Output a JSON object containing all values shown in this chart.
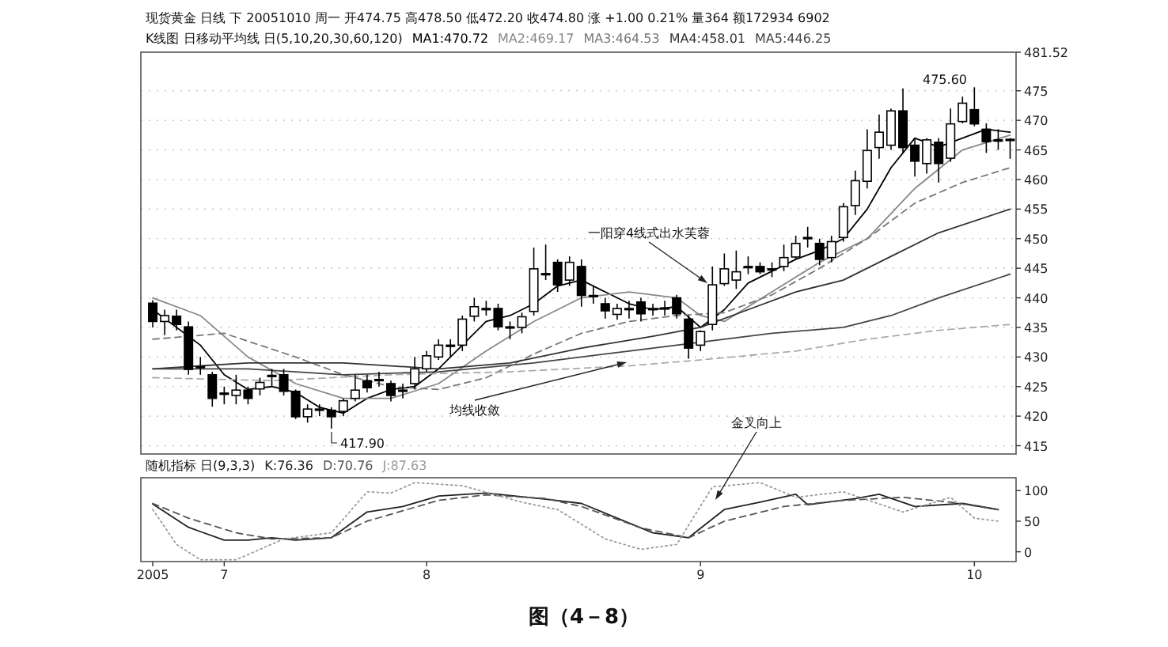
{
  "chart_data": [
    {
      "type": "candlestick",
      "title": "现货黄金 日线 下 20051010 周一 开474.75 高478.50 低472.20 收474.80 涨 +1.00 0.21% 量364 额172934 6902",
      "subtitle": "K线图 日移动平均线 日(5,10,20,30,60,120)",
      "categories": [
        null,
        null,
        null,
        null,
        null,
        null,
        null,
        null,
        null,
        null,
        null,
        null,
        null,
        null,
        null,
        null,
        null,
        null,
        null,
        null,
        null,
        null,
        null,
        null,
        null,
        null,
        null,
        null,
        null,
        null,
        null,
        null,
        null,
        null,
        null,
        null,
        null,
        null,
        null,
        null,
        null,
        null,
        null,
        null,
        null,
        null,
        null,
        null,
        null,
        null,
        null,
        null,
        null,
        null,
        null,
        null,
        null,
        null,
        null,
        null,
        null,
        null,
        null,
        null,
        null,
        null,
        null,
        null,
        null,
        null,
        null,
        null,
        null
      ],
      "ohlc": [
        [
          439.1,
          439.6,
          435,
          436
        ],
        [
          436,
          438,
          433.7,
          437
        ],
        [
          436.9,
          438,
          434.5,
          435.5
        ],
        [
          435.1,
          436,
          427,
          427.9
        ],
        [
          428.2,
          430,
          427,
          428.4
        ],
        [
          427,
          427.5,
          421.6,
          423
        ],
        [
          423.8,
          425,
          422,
          423.9
        ],
        [
          423.5,
          427,
          422,
          424.4
        ],
        [
          424.4,
          425,
          422,
          423
        ],
        [
          424.6,
          426.5,
          423.5,
          425.7
        ],
        [
          426.8,
          428,
          425,
          426.9
        ],
        [
          427,
          428,
          423.5,
          424.2
        ],
        [
          424.2,
          424.5,
          419.5,
          419.9
        ],
        [
          419.9,
          422,
          418.9,
          421.2
        ],
        [
          421.1,
          422,
          420,
          421.2
        ],
        [
          421,
          421.5,
          417.9,
          419.9
        ],
        [
          420.8,
          423,
          420,
          422.6
        ],
        [
          423,
          427,
          422.5,
          424.4
        ],
        [
          426,
          427,
          424,
          424.8
        ],
        [
          426.1,
          427.5,
          425,
          426.2
        ],
        [
          425.5,
          426,
          422.5,
          423.5
        ],
        [
          424.3,
          425.5,
          423,
          424.4
        ],
        [
          425.5,
          430,
          424.5,
          428
        ],
        [
          428,
          431,
          427.5,
          430.2
        ],
        [
          430,
          433,
          429.5,
          432
        ],
        [
          431.9,
          433,
          430,
          432
        ],
        [
          432,
          437,
          431,
          436.4
        ],
        [
          436.9,
          440,
          436,
          438.5
        ],
        [
          438.1,
          439.5,
          437,
          438.2
        ],
        [
          438.2,
          439,
          434.5,
          435.1
        ],
        [
          435,
          436,
          433,
          435.1
        ],
        [
          435,
          437.5,
          434,
          436.8
        ],
        [
          437.7,
          448.5,
          437,
          444.9
        ],
        [
          444.1,
          449,
          443,
          444
        ],
        [
          446,
          446.5,
          441,
          442.2
        ],
        [
          443,
          447,
          442,
          446
        ],
        [
          445.3,
          446.5,
          438.5,
          440.4
        ],
        [
          440.3,
          442,
          439,
          440.4
        ],
        [
          439,
          440,
          436.5,
          437.8
        ],
        [
          437.2,
          439,
          436.3,
          438.2
        ],
        [
          438.1,
          439.5,
          436.5,
          438.2
        ],
        [
          439.3,
          440,
          436,
          437.3
        ],
        [
          438.1,
          439,
          437,
          438.2
        ],
        [
          438.2,
          439.5,
          437,
          438.3
        ],
        [
          440,
          440.5,
          436.5,
          437.3
        ],
        [
          436.4,
          437,
          429.7,
          431.5
        ],
        [
          432,
          434.5,
          431,
          434.3
        ],
        [
          435.5,
          445.3,
          434.5,
          442.2
        ],
        [
          442.4,
          447.5,
          442,
          444.9
        ],
        [
          443,
          448,
          441.5,
          444.4
        ],
        [
          445.2,
          447,
          444,
          445.3
        ],
        [
          445.3,
          446,
          444,
          444.4
        ],
        [
          444.8,
          446,
          443.5,
          444.9
        ],
        [
          445.3,
          449,
          444.5,
          446.8
        ],
        [
          446.9,
          450.5,
          446.5,
          449.2
        ],
        [
          450.1,
          452,
          448.5,
          450.2
        ],
        [
          449.2,
          450,
          445.5,
          446.5
        ],
        [
          446.8,
          450.5,
          446,
          449.5
        ],
        [
          450.2,
          456,
          449.5,
          455.4
        ],
        [
          455.6,
          461.5,
          454,
          459.8
        ],
        [
          459.7,
          468.5,
          458.5,
          464.9
        ],
        [
          465.4,
          471,
          463.5,
          468
        ],
        [
          465.8,
          472,
          465,
          471.6
        ],
        [
          471.6,
          475.4,
          464.5,
          465.4
        ],
        [
          465.8,
          467,
          460.5,
          463.1
        ],
        [
          462.7,
          467,
          461,
          466.7
        ],
        [
          466.3,
          467,
          459.5,
          462.7
        ],
        [
          463.6,
          472,
          463,
          469.4
        ],
        [
          469.8,
          474,
          469.5,
          472.9
        ],
        [
          471.8,
          475.6,
          469,
          469.4
        ],
        [
          468.5,
          469.5,
          464.5,
          466.4
        ],
        [
          466.6,
          468.5,
          465,
          466.7
        ],
        [
          466.8,
          467,
          463.5,
          466.7
        ]
      ],
      "series": [
        {
          "name": "MA1:470.72",
          "type": "line",
          "color": "#000000",
          "line_style": "solid",
          "values": [
            438,
            null,
            null,
            null,
            432,
            null,
            427,
            null,
            424.5,
            null,
            425,
            null,
            424,
            null,
            421.5,
            null,
            420.5,
            null,
            423,
            null,
            424.5,
            null,
            425,
            null,
            428,
            null,
            432,
            null,
            436,
            null,
            437,
            null,
            439,
            null,
            442,
            null,
            443,
            null,
            441,
            null,
            439,
            null,
            438,
            null,
            438.5,
            null,
            435,
            null,
            438,
            null,
            442.5,
            null,
            444.5,
            null,
            446.5,
            null,
            448,
            null,
            450,
            null,
            455,
            null,
            462,
            null,
            467,
            null,
            465.5,
            null,
            467,
            null,
            468.5,
            null,
            468
          ]
        },
        {
          "name": "MA2:469.17",
          "type": "line",
          "color": "#888888",
          "line_style": "solid",
          "values": [
            440,
            null,
            null,
            null,
            437,
            null,
            null,
            null,
            430,
            null,
            null,
            null,
            425.5,
            null,
            null,
            null,
            423,
            null,
            null,
            null,
            423,
            null,
            null,
            null,
            425.5,
            null,
            null,
            null,
            431,
            null,
            null,
            null,
            436,
            null,
            null,
            null,
            440,
            null,
            null,
            null,
            441,
            null,
            null,
            null,
            440,
            null,
            437,
            null,
            436,
            null,
            null,
            null,
            441,
            null,
            null,
            null,
            446,
            null,
            null,
            null,
            450,
            null,
            null,
            null,
            458.5,
            null,
            null,
            null,
            465,
            null,
            null,
            null,
            467.5
          ]
        },
        {
          "name": "MA3:464.53",
          "type": "line",
          "color": "#777777",
          "line_style": "dashed",
          "values": [
            433,
            null,
            null,
            null,
            null,
            null,
            434,
            null,
            null,
            null,
            null,
            null,
            430,
            null,
            null,
            null,
            427,
            null,
            null,
            null,
            425,
            null,
            null,
            null,
            424.5,
            null,
            null,
            null,
            426.5,
            null,
            null,
            null,
            430.5,
            null,
            null,
            null,
            434,
            null,
            null,
            null,
            436,
            null,
            null,
            null,
            437,
            null,
            null,
            null,
            437.5,
            null,
            null,
            null,
            440.5,
            null,
            null,
            null,
            445,
            null,
            null,
            null,
            450,
            null,
            null,
            null,
            456,
            null,
            null,
            null,
            459.5,
            null,
            null,
            null,
            462
          ]
        },
        {
          "name": "MA4:458.01",
          "type": "line",
          "color": "#333333",
          "line_style": "solid",
          "values": [
            428,
            null,
            null,
            null,
            null,
            null,
            null,
            null,
            429,
            null,
            null,
            null,
            null,
            null,
            null,
            null,
            429,
            null,
            null,
            null,
            null,
            null,
            null,
            null,
            428,
            null,
            null,
            null,
            null,
            null,
            429,
            null,
            null,
            null,
            null,
            null,
            431.5,
            null,
            null,
            null,
            null,
            null,
            433.5,
            null,
            null,
            null,
            435,
            null,
            null,
            null,
            438,
            null,
            null,
            null,
            441,
            null,
            null,
            null,
            443,
            null,
            null,
            null,
            447,
            null,
            null,
            null,
            451,
            null,
            null,
            null,
            null,
            null,
            455
          ]
        },
        {
          "name": "MA5:446.25",
          "type": "line",
          "color": "#444444",
          "line_style": "solid",
          "values": [
            428,
            null,
            null,
            null,
            null,
            null,
            null,
            null,
            428,
            null,
            null,
            null,
            null,
            null,
            null,
            null,
            427,
            null,
            null,
            null,
            null,
            null,
            null,
            null,
            427.5,
            null,
            null,
            null,
            null,
            null,
            null,
            null,
            429,
            null,
            null,
            null,
            null,
            null,
            null,
            null,
            431,
            null,
            null,
            null,
            null,
            null,
            432.5,
            null,
            null,
            null,
            null,
            null,
            434,
            null,
            null,
            null,
            null,
            null,
            435,
            null,
            null,
            null,
            437,
            null,
            null,
            null,
            440,
            null,
            null,
            null,
            null,
            null,
            444
          ]
        },
        {
          "type": "line",
          "color": "#aaaaaa",
          "line_style": "dashed",
          "values": [
            426.5,
            null,
            null,
            null,
            null,
            null,
            null,
            null,
            null,
            null,
            426,
            null,
            null,
            null,
            null,
            null,
            null,
            null,
            null,
            null,
            427,
            null,
            null,
            null,
            null,
            null,
            null,
            null,
            null,
            null,
            427.5,
            null,
            null,
            null,
            null,
            null,
            null,
            null,
            null,
            null,
            428.5,
            null,
            null,
            null,
            null,
            null,
            429.5,
            null,
            null,
            null,
            null,
            null,
            null,
            null,
            431,
            null,
            null,
            null,
            null,
            null,
            433,
            null,
            null,
            null,
            null,
            null,
            434.5,
            null,
            null,
            null,
            null,
            null,
            435.5
          ]
        }
      ],
      "ylim": [
        413.6,
        481.52
      ],
      "yticks": [
        415,
        420,
        425,
        430,
        435,
        440,
        445,
        450,
        455,
        460,
        465,
        470,
        475,
        {
          "value": 481.52,
          "label": "481.52"
        }
      ],
      "tick_labels": "y",
      "grid": "y",
      "legend": "top left",
      "annotations": [
        "一阳穿4线式出水芙蓉",
        "均线收敛",
        "417.90",
        "475.60",
        "图（4－8）"
      ]
    },
    {
      "type": "line",
      "title": "随机指标 日(9,3,3)",
      "categories": [
        "2005",
        null,
        null,
        null,
        null,
        null,
        "7",
        null,
        null,
        null,
        null,
        null,
        null,
        null,
        null,
        null,
        null,
        null,
        null,
        null,
        null,
        null,
        null,
        "8",
        null,
        null,
        null,
        null,
        null,
        null,
        null,
        null,
        null,
        null,
        null,
        null,
        null,
        null,
        null,
        null,
        null,
        null,
        null,
        null,
        null,
        null,
        "9",
        null,
        null,
        null,
        null,
        null,
        null,
        null,
        null,
        null,
        null,
        null,
        null,
        null,
        null,
        null,
        null,
        null,
        null,
        null,
        null,
        null,
        null,
        "10",
        null,
        null,
        null
      ],
      "series": [
        {
          "name": "K:76.36",
          "color": "#222222",
          "line_style": "solid",
          "values": [
            78,
            null,
            null,
            40,
            null,
            null,
            19,
            null,
            19,
            null,
            23,
            null,
            19,
            null,
            null,
            23,
            null,
            null,
            65,
            null,
            null,
            74,
            null,
            null,
            91,
            null,
            null,
            null,
            96,
            null,
            null,
            null,
            null,
            86,
            null,
            null,
            79,
            null,
            null,
            55,
            null,
            null,
            31,
            null,
            null,
            23,
            null,
            null,
            69,
            null,
            null,
            81,
            null,
            null,
            94,
            77,
            null,
            null,
            null,
            87,
            null,
            94,
            null,
            null,
            74,
            null,
            null,
            null,
            79,
            null,
            null,
            69,
            null
          ]
        },
        {
          "name": "D:70.76",
          "color": "#555555",
          "line_style": "dashed",
          "values": [
            79,
            null,
            null,
            55,
            null,
            null,
            null,
            31,
            null,
            null,
            21,
            null,
            null,
            null,
            null,
            23,
            null,
            null,
            50,
            null,
            null,
            null,
            null,
            null,
            84,
            null,
            null,
            null,
            93,
            null,
            null,
            null,
            null,
            87,
            null,
            null,
            74,
            null,
            null,
            null,
            null,
            39,
            null,
            null,
            null,
            23,
            null,
            null,
            50,
            null,
            null,
            null,
            null,
            74,
            null,
            null,
            null,
            null,
            84,
            null,
            null,
            null,
            null,
            89,
            null,
            null,
            null,
            81,
            null,
            null,
            null,
            69,
            null
          ]
        },
        {
          "name": "J:87.63",
          "color": "#999999",
          "line_style": "dotted",
          "values": [
            69,
            null,
            12,
            null,
            -13,
            null,
            null,
            -13,
            null,
            null,
            null,
            21,
            null,
            null,
            null,
            31,
            null,
            null,
            98,
            null,
            96,
            null,
            113,
            null,
            null,
            null,
            108,
            null,
            null,
            null,
            null,
            81,
            null,
            null,
            69,
            null,
            null,
            null,
            21,
            null,
            null,
            4,
            null,
            null,
            12,
            null,
            null,
            106,
            null,
            null,
            null,
            113,
            null,
            null,
            89,
            null,
            null,
            null,
            98,
            null,
            null,
            null,
            null,
            65,
            null,
            null,
            null,
            89,
            null,
            55,
            null,
            50,
            null
          ]
        }
      ],
      "ylim": [
        -16,
        121
      ],
      "yticks": [
        0,
        50,
        100
      ],
      "legend": "top left",
      "annotations": [
        "金叉向上"
      ]
    }
  ]
}
